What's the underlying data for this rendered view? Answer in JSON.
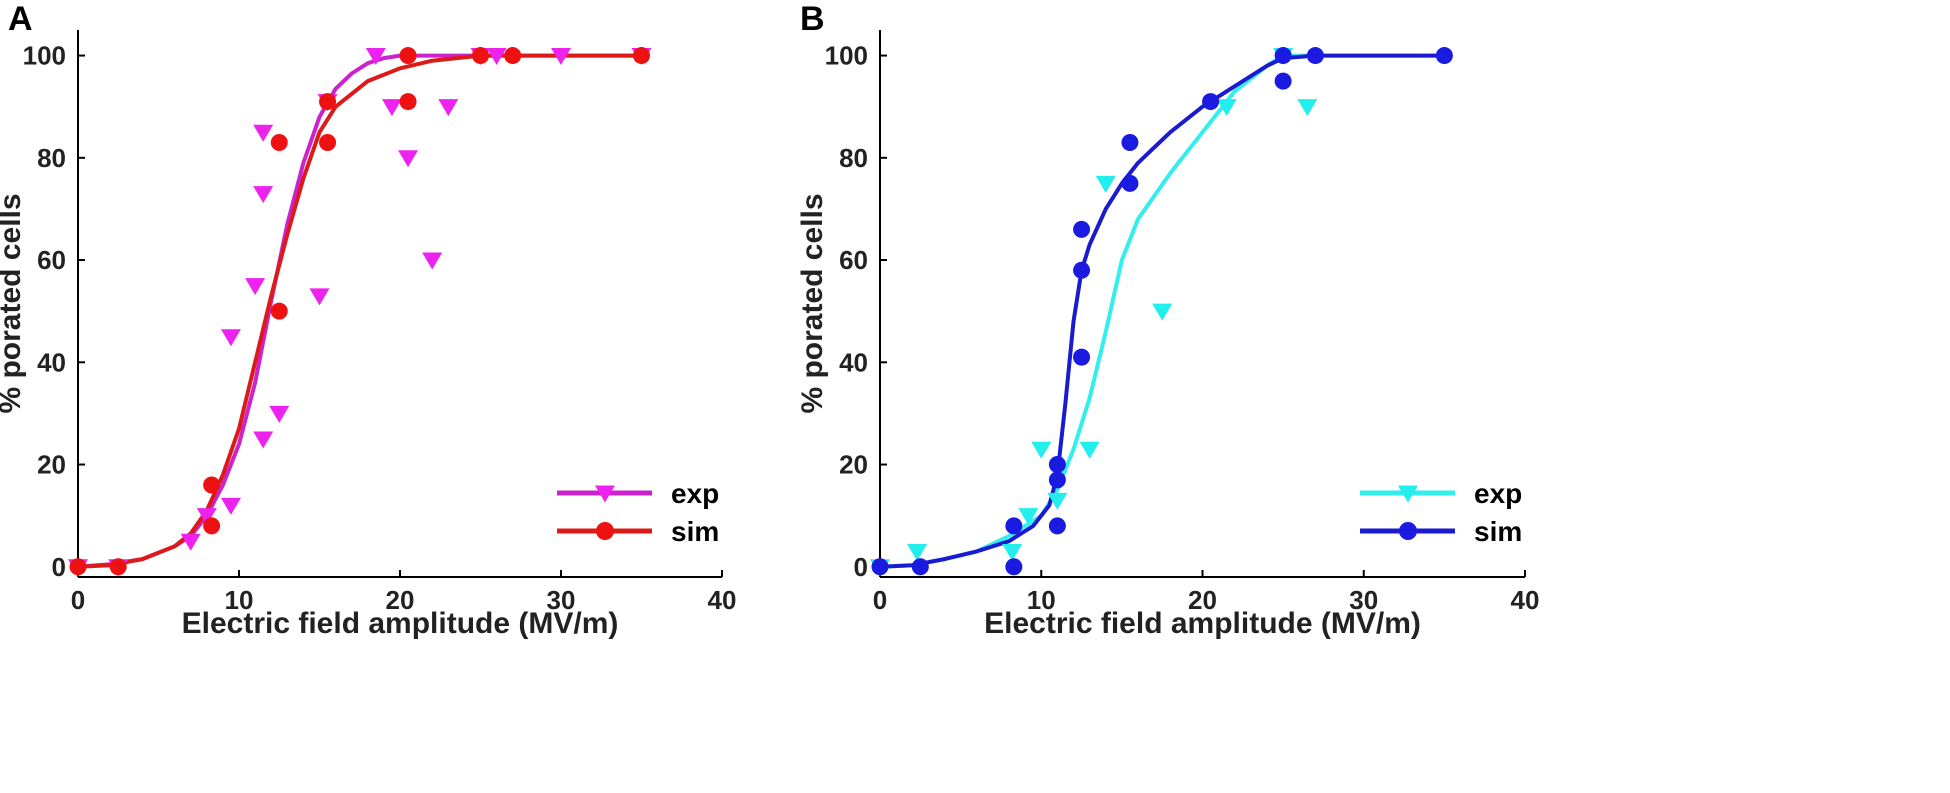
{
  "chart_data": [
    {
      "panel_label": "A",
      "type": "scatter",
      "xlabel": "Electric field amplitude (MV/m)",
      "ylabel": "% porated cells",
      "xlim": [
        0,
        40
      ],
      "ylim": [
        -2,
        105
      ],
      "xticks": [
        0,
        10,
        20,
        30,
        40
      ],
      "yticks": [
        0,
        20,
        40,
        60,
        80,
        100
      ],
      "legend_position": "bottom-right",
      "series": [
        {
          "name": "exp",
          "color": "#ee22ee",
          "line_color": "#cc22cc",
          "marker": "triangle-down",
          "points": [
            [
              0,
              0
            ],
            [
              2.5,
              0
            ],
            [
              7,
              5
            ],
            [
              8,
              10
            ],
            [
              9.5,
              12
            ],
            [
              9.5,
              45
            ],
            [
              11,
              55
            ],
            [
              11.5,
              25
            ],
            [
              11.5,
              73
            ],
            [
              11.5,
              85
            ],
            [
              12.5,
              30
            ],
            [
              15,
              53
            ],
            [
              15.5,
              91
            ],
            [
              18.5,
              100
            ],
            [
              19.5,
              90
            ],
            [
              20.5,
              80
            ],
            [
              22,
              60
            ],
            [
              23,
              90
            ],
            [
              25,
              100
            ],
            [
              26,
              100
            ],
            [
              30,
              100
            ],
            [
              35,
              100
            ]
          ],
          "curve": [
            [
              0,
              0
            ],
            [
              2,
              0.5
            ],
            [
              4,
              1.5
            ],
            [
              6,
              4
            ],
            [
              7,
              6
            ],
            [
              8,
              10
            ],
            [
              9,
              16
            ],
            [
              10,
              24
            ],
            [
              11,
              36
            ],
            [
              12,
              52
            ],
            [
              13,
              67
            ],
            [
              14,
              79
            ],
            [
              15,
              88
            ],
            [
              16,
              93.5
            ],
            [
              17,
              96.5
            ],
            [
              18,
              98.5
            ],
            [
              19,
              99.5
            ],
            [
              20,
              100
            ],
            [
              22,
              100
            ],
            [
              25,
              100
            ],
            [
              30,
              100
            ],
            [
              35,
              100
            ]
          ]
        },
        {
          "name": "sim",
          "color": "#ee1111",
          "line_color": "#dd1a1a",
          "marker": "circle",
          "points": [
            [
              0,
              0
            ],
            [
              2.5,
              0
            ],
            [
              8.3,
              16
            ],
            [
              8.3,
              8
            ],
            [
              12.5,
              83
            ],
            [
              12.5,
              50
            ],
            [
              15.5,
              91
            ],
            [
              15.5,
              83
            ],
            [
              20.5,
              100
            ],
            [
              20.5,
              91
            ],
            [
              25,
              100
            ],
            [
              27,
              100
            ],
            [
              35,
              100
            ]
          ],
          "curve": [
            [
              0,
              0
            ],
            [
              2,
              0.3
            ],
            [
              4,
              1.5
            ],
            [
              6,
              4
            ],
            [
              7,
              6.5
            ],
            [
              8,
              11
            ],
            [
              9,
              18
            ],
            [
              10,
              27
            ],
            [
              11,
              40
            ],
            [
              12,
              53
            ],
            [
              13,
              65
            ],
            [
              14,
              76
            ],
            [
              15,
              85
            ],
            [
              16,
              90
            ],
            [
              18,
              95
            ],
            [
              20,
              97.5
            ],
            [
              22,
              99
            ],
            [
              25,
              100
            ],
            [
              30,
              100
            ],
            [
              35,
              100
            ]
          ]
        }
      ]
    },
    {
      "panel_label": "B",
      "type": "scatter",
      "xlabel": "Electric field amplitude (MV/m)",
      "ylabel": "% porated cells",
      "xlim": [
        0,
        40
      ],
      "ylim": [
        -2,
        105
      ],
      "xticks": [
        0,
        10,
        20,
        30,
        40
      ],
      "yticks": [
        0,
        20,
        40,
        60,
        80,
        100
      ],
      "legend_position": "bottom-right",
      "series": [
        {
          "name": "exp",
          "color": "#22eeee",
          "line_color": "#33eeee",
          "marker": "triangle-down",
          "points": [
            [
              0,
              0
            ],
            [
              2.3,
              3
            ],
            [
              8.2,
              3
            ],
            [
              9.2,
              10
            ],
            [
              10,
              23
            ],
            [
              11,
              13
            ],
            [
              13,
              23
            ],
            [
              14,
              75
            ],
            [
              17.5,
              50
            ],
            [
              21.5,
              90
            ],
            [
              25,
              100
            ],
            [
              26.5,
              90
            ]
          ],
          "curve": [
            [
              0,
              0
            ],
            [
              2,
              0.3
            ],
            [
              4,
              1.5
            ],
            [
              6,
              3
            ],
            [
              8,
              6
            ],
            [
              10,
              10
            ],
            [
              11,
              15
            ],
            [
              12,
              23
            ],
            [
              13,
              33
            ],
            [
              14,
              46
            ],
            [
              15,
              60
            ],
            [
              16,
              68
            ],
            [
              18,
              77
            ],
            [
              20,
              85
            ],
            [
              22,
              93
            ],
            [
              24,
              98
            ],
            [
              25,
              100
            ],
            [
              30,
              100
            ],
            [
              35,
              100
            ]
          ]
        },
        {
          "name": "sim",
          "color": "#1a1ae0",
          "line_color": "#1a1ad0",
          "marker": "circle",
          "points": [
            [
              0,
              0
            ],
            [
              2.5,
              0
            ],
            [
              8.3,
              8
            ],
            [
              8.3,
              0
            ],
            [
              11,
              20
            ],
            [
              11,
              17
            ],
            [
              11,
              8
            ],
            [
              12.5,
              66
            ],
            [
              12.5,
              58
            ],
            [
              12.5,
              41
            ],
            [
              15.5,
              83
            ],
            [
              15.5,
              75
            ],
            [
              20.5,
              91
            ],
            [
              25,
              100
            ],
            [
              25,
              95
            ],
            [
              27,
              100
            ],
            [
              35,
              100
            ]
          ],
          "curve": [
            [
              0,
              0
            ],
            [
              2,
              0.3
            ],
            [
              4,
              1.5
            ],
            [
              6,
              3
            ],
            [
              8,
              5
            ],
            [
              9.5,
              8
            ],
            [
              10.5,
              12
            ],
            [
              11,
              18
            ],
            [
              11.5,
              32
            ],
            [
              12,
              48
            ],
            [
              12.5,
              58
            ],
            [
              13,
              63
            ],
            [
              14,
              70
            ],
            [
              15,
              75
            ],
            [
              16,
              79
            ],
            [
              18,
              85
            ],
            [
              20,
              90
            ],
            [
              22,
              94
            ],
            [
              24,
              98
            ],
            [
              25,
              99.5
            ],
            [
              27,
              100
            ],
            [
              35,
              100
            ]
          ]
        }
      ]
    }
  ]
}
